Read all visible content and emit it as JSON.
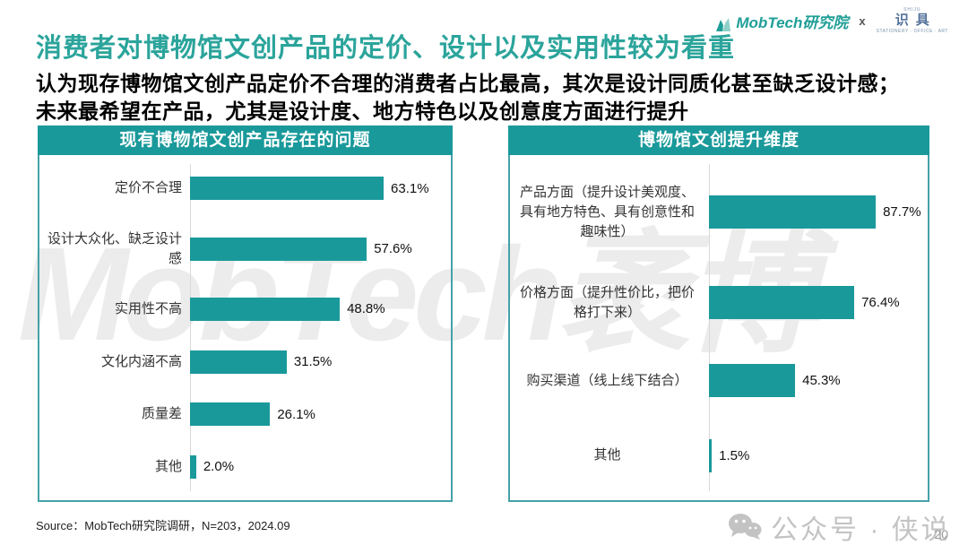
{
  "header": {
    "title": "消费者对博物馆文创产品的定价、设计以及实用性较为看重",
    "subtitle_line1": "认为现存博物馆文创产品定价不合理的消费者占比最高，其次是设计同质化甚至缺乏设计感；",
    "subtitle_line2": "未来最希望在产品，尤其是设计度、地方特色以及创意度方面进行提升",
    "logos": {
      "mobtech_label": "MobTech研究院",
      "separator": "x",
      "shiju_top": "SHIJU",
      "shiju_label": "识具",
      "shiju_tagline": "STATIONERY · OFFICE · ART"
    }
  },
  "chart_data": [
    {
      "type": "bar",
      "orientation": "horizontal",
      "title": "现有博物馆文创产品存在的问题",
      "categories": [
        "定价不合理",
        "设计大众化、缺乏设计感",
        "实用性不高",
        "文化内涵不高",
        "质量差",
        "其他"
      ],
      "values": [
        63.1,
        57.6,
        48.8,
        31.5,
        26.1,
        2.0
      ],
      "value_suffix": "%",
      "xlim": [
        0,
        85
      ],
      "grid": false,
      "legend": "none",
      "bar_color": "#1a999b"
    },
    {
      "type": "bar",
      "orientation": "horizontal",
      "title": "博物馆文创提升维度",
      "categories": [
        "产品方面（提升设计美观度、具有地方特色、具有创意性和趣味性）",
        "价格方面（提升性价比，把价格打下来）",
        "购买渠道（线上线下结合）",
        "其他"
      ],
      "values": [
        87.7,
        76.4,
        45.3,
        1.5
      ],
      "value_suffix": "%",
      "xlim": [
        0,
        115
      ],
      "grid": false,
      "legend": "none",
      "bar_color": "#1a999b"
    }
  ],
  "footer": {
    "source": "Source：MobTech研究院调研，N=203，2024.09",
    "page_number": "20"
  },
  "watermarks": {
    "background_text": "MobTech袤博",
    "wechat_text": "公众号 · 侠说"
  },
  "colors": {
    "accent_teal": "#1a999b",
    "title_teal": "#2ba49b",
    "panel_border": "#45a1a8",
    "axis_gray": "#d9d9d9",
    "watermark_gray": "#c3c3c3"
  }
}
